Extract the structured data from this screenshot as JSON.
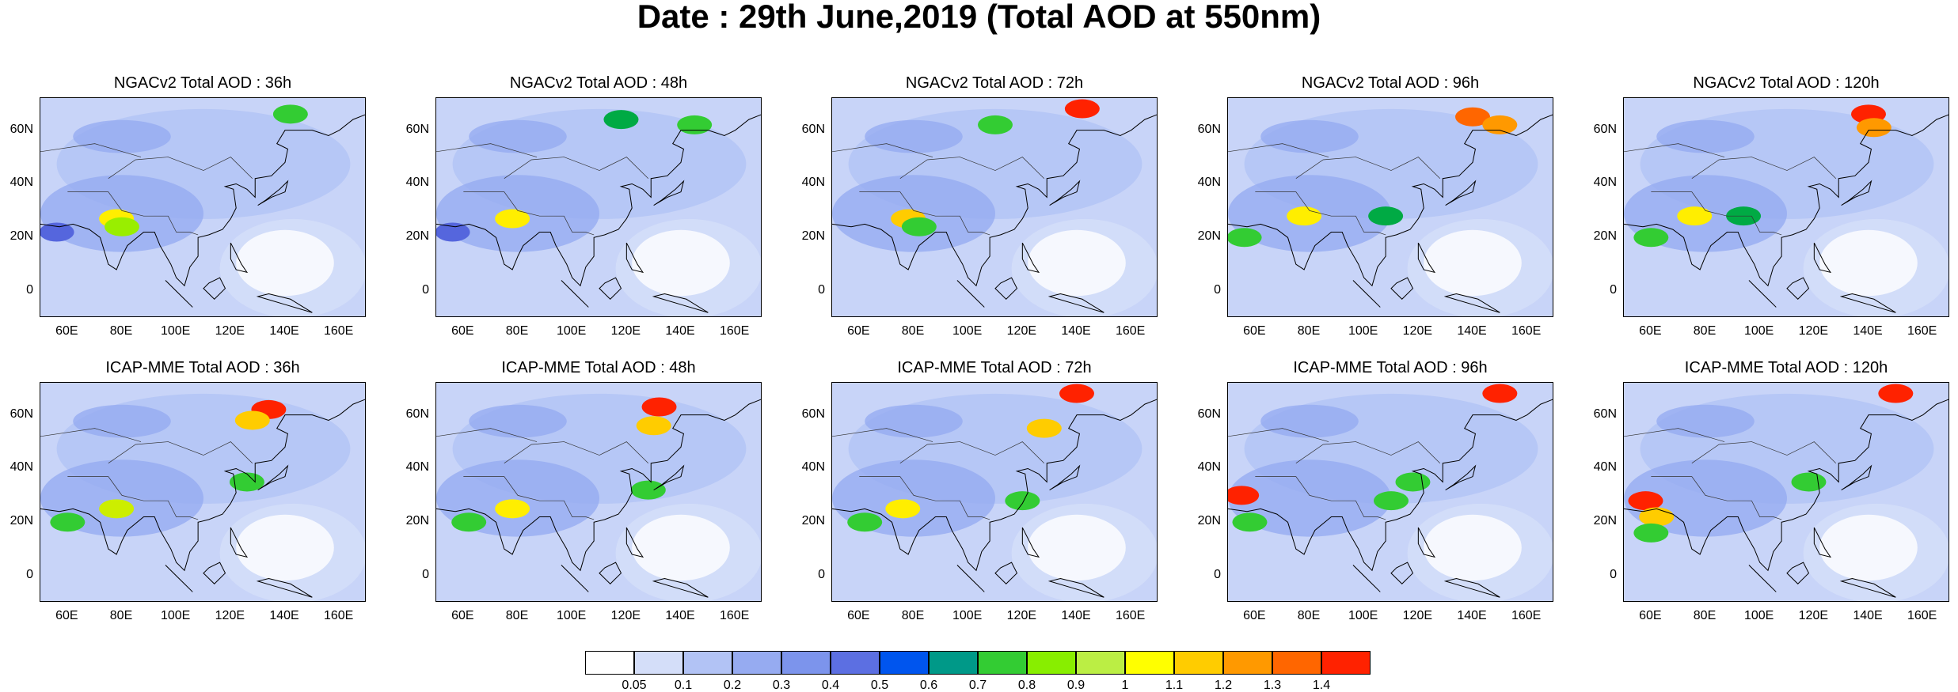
{
  "title": "Date : 29th June,2019 (Total AOD at 550nm)",
  "panels": [
    {
      "title": "NGACv2 Total AOD : 36h",
      "model": "NGACv2",
      "lead": "36h",
      "hotspots": [
        [
          78,
          27,
          "#ffee00"
        ],
        [
          80,
          24,
          "#99ee00"
        ],
        [
          142,
          66,
          "#33cc33"
        ],
        [
          56,
          22,
          "#5566dd"
        ]
      ]
    },
    {
      "title": "NGACv2 Total AOD : 48h",
      "model": "NGACv2",
      "lead": "48h",
      "hotspots": [
        [
          78,
          27,
          "#ffee00"
        ],
        [
          145,
          62,
          "#33cc33"
        ],
        [
          118,
          64,
          "#00aa44"
        ],
        [
          56,
          22,
          "#5566dd"
        ]
      ]
    },
    {
      "title": "NGACv2 Total AOD : 72h",
      "model": "NGACv2",
      "lead": "72h",
      "hotspots": [
        [
          78,
          27,
          "#ffcc00"
        ],
        [
          82,
          24,
          "#33cc33"
        ],
        [
          142,
          68,
          "#ff2200"
        ],
        [
          110,
          62,
          "#33cc33"
        ]
      ]
    },
    {
      "title": "NGACv2 Total AOD : 96h",
      "model": "NGACv2",
      "lead": "96h",
      "hotspots": [
        [
          78,
          28,
          "#ffee00"
        ],
        [
          140,
          65,
          "#ff6600"
        ],
        [
          150,
          62,
          "#ff9900"
        ],
        [
          56,
          20,
          "#33cc33"
        ],
        [
          108,
          28,
          "#00aa44"
        ]
      ]
    },
    {
      "title": "NGACv2 Total AOD : 120h",
      "model": "NGACv2",
      "lead": "120h",
      "hotspots": [
        [
          76,
          28,
          "#ffee00"
        ],
        [
          140,
          66,
          "#ff2200"
        ],
        [
          142,
          61,
          "#ff9900"
        ],
        [
          60,
          20,
          "#33cc33"
        ],
        [
          94,
          28,
          "#00aa44"
        ]
      ]
    },
    {
      "title": "ICAP-MME Total AOD : 36h",
      "model": "ICAP-MME",
      "lead": "36h",
      "hotspots": [
        [
          60,
          20,
          "#33cc33"
        ],
        [
          78,
          25,
          "#ccee00"
        ],
        [
          134,
          62,
          "#ff2200"
        ],
        [
          128,
          58,
          "#ffcc00"
        ],
        [
          126,
          35,
          "#33cc33"
        ]
      ]
    },
    {
      "title": "ICAP-MME Total AOD : 48h",
      "model": "ICAP-MME",
      "lead": "48h",
      "hotspots": [
        [
          62,
          20,
          "#33cc33"
        ],
        [
          78,
          25,
          "#ffee00"
        ],
        [
          132,
          63,
          "#ff2200"
        ],
        [
          130,
          56,
          "#ffcc00"
        ],
        [
          128,
          32,
          "#33cc33"
        ]
      ]
    },
    {
      "title": "ICAP-MME Total AOD : 72h",
      "model": "ICAP-MME",
      "lead": "72h",
      "hotspots": [
        [
          62,
          20,
          "#33cc33"
        ],
        [
          76,
          25,
          "#ffee00"
        ],
        [
          140,
          68,
          "#ff2200"
        ],
        [
          128,
          55,
          "#ffcc00"
        ],
        [
          120,
          28,
          "#33cc33"
        ]
      ]
    },
    {
      "title": "ICAP-MME Total AOD : 96h",
      "model": "ICAP-MME",
      "lead": "96h",
      "hotspots": [
        [
          55,
          30,
          "#ff2200"
        ],
        [
          58,
          20,
          "#33cc33"
        ],
        [
          150,
          68,
          "#ff2200"
        ],
        [
          118,
          35,
          "#33cc33"
        ],
        [
          110,
          28,
          "#33cc33"
        ]
      ]
    },
    {
      "title": "ICAP-MME Total AOD : 120h",
      "model": "ICAP-MME",
      "lead": "120h",
      "hotspots": [
        [
          58,
          28,
          "#ff2200"
        ],
        [
          62,
          22,
          "#ffcc00"
        ],
        [
          150,
          68,
          "#ff2200"
        ],
        [
          118,
          35,
          "#33cc33"
        ],
        [
          60,
          16,
          "#33cc33"
        ]
      ]
    }
  ],
  "lat_ticks": [
    "60N",
    "40N",
    "20N",
    "0"
  ],
  "lat_values": [
    60,
    40,
    20,
    0
  ],
  "lon_ticks": [
    "60E",
    "80E",
    "100E",
    "120E",
    "140E",
    "160E"
  ],
  "lon_values": [
    60,
    80,
    100,
    120,
    140,
    160
  ],
  "map_extent": {
    "lon": [
      50,
      170
    ],
    "lat": [
      -10,
      72
    ]
  },
  "colorbar": {
    "colors": [
      "#ffffff",
      "#d4def9",
      "#b2c3f5",
      "#96abf1",
      "#7c94ec",
      "#5c6fe2",
      "#0055ee",
      "#009988",
      "#33cc33",
      "#88ee00",
      "#bbee44",
      "#ffff00",
      "#ffcc00",
      "#ff9900",
      "#ff6600",
      "#ff2200"
    ],
    "labels": [
      "0.05",
      "0.1",
      "0.2",
      "0.3",
      "0.4",
      "0.5",
      "0.6",
      "0.7",
      "0.8",
      "0.9",
      "1",
      "1.1",
      "1.2",
      "1.3",
      "1.4"
    ]
  }
}
